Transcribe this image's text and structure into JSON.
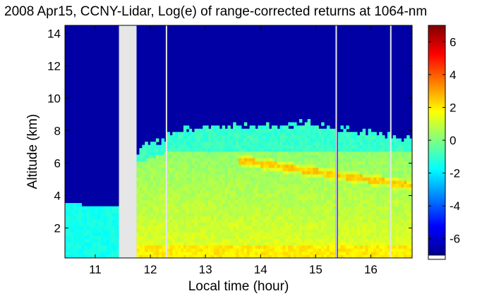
{
  "chart_data": {
    "type": "heatmap",
    "title": "2008 Apr15, CCNY-Lidar, Log(e) of range-corrected returns at 1064-nm",
    "xlabel": "Local time (hour)",
    "ylabel": "Altitude (km)",
    "xlim": [
      10.45,
      16.75
    ],
    "ylim": [
      0.15,
      14.5
    ],
    "x_ticks": [
      11,
      12,
      13,
      14,
      15,
      16
    ],
    "y_ticks": [
      2,
      4,
      6,
      8,
      10,
      12,
      14
    ],
    "colorbar": {
      "range": [
        -7,
        7
      ],
      "ticks": [
        -6,
        -4,
        -2,
        0,
        2,
        4,
        6
      ],
      "colormap": "jet"
    },
    "data_gaps": [
      {
        "start": 11.43,
        "end": 11.75
      },
      {
        "start": 12.28,
        "end": 12.3
      },
      {
        "start": 15.36,
        "end": 15.38
      },
      {
        "start": 16.35,
        "end": 16.37
      }
    ],
    "layers": [
      {
        "name": "boundary-layer",
        "from_time": 10.45,
        "to_time": 11.43,
        "top_km": [
          3.5,
          3.3
        ],
        "value": -1.5
      },
      {
        "name": "lower-aerosol",
        "bottom_km": 0.15,
        "top_km": 3.0,
        "value": 1.3
      },
      {
        "name": "mid-aerosol",
        "bottom_km": 3.0,
        "top_km": 6.8,
        "value": 0.3
      },
      {
        "name": "upper-aerosol-tenuous",
        "bottom_km_by_time": [
          [
            11.75,
            6.0
          ],
          [
            12.7,
            7.2
          ],
          [
            14.0,
            7.5
          ],
          [
            15.0,
            7.4
          ],
          [
            16.75,
            7.0
          ]
        ],
        "top_km_by_time": [
          [
            11.75,
            6.8
          ],
          [
            12.3,
            7.6
          ],
          [
            12.7,
            8.2
          ],
          [
            14.4,
            8.3
          ],
          [
            14.8,
            8.5
          ],
          [
            16.75,
            7.5
          ]
        ],
        "value": -1.0
      },
      {
        "name": "elevated-plume",
        "start_time": 13.6,
        "end_time": 16.75,
        "alt_km_start": 6.2,
        "alt_km_end": 4.6,
        "thickness_km": 0.35,
        "value": 2.4
      },
      {
        "name": "surface-enhanced",
        "bottom_km": 0.15,
        "top_km": 1.0,
        "value": 2.0
      }
    ]
  }
}
